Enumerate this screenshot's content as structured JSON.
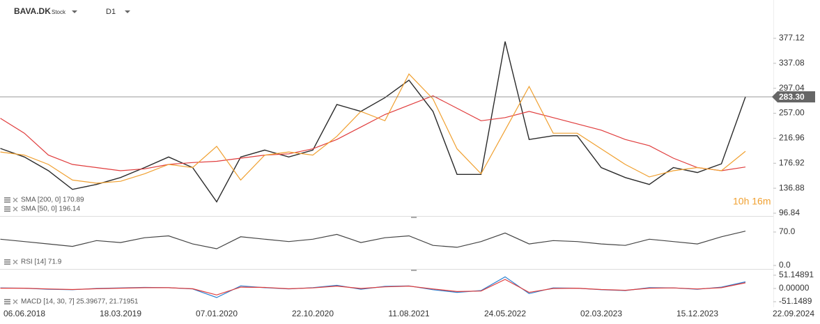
{
  "header": {
    "symbol": "BAVA.DK",
    "kind": "Stock",
    "timeframe": "D1",
    "countdown": "10h 16m"
  },
  "chart_data": [
    {
      "type": "line",
      "categories": [
        null,
        "06.06.2018",
        null,
        null,
        null,
        "18.03.2019",
        null,
        null,
        null,
        "07.01.2020",
        null,
        null,
        null,
        "22.10.2020",
        null,
        null,
        null,
        "11.08.2021",
        null,
        null,
        null,
        "24.05.2022",
        null,
        null,
        null,
        "02.03.2023",
        null,
        null,
        null,
        "15.12.2023",
        null,
        null,
        null,
        "22.09.2024"
      ],
      "ylim": [
        92.37,
        432.96
      ],
      "yticks": [
        {
          "value": 96.84,
          "label": "96.84"
        },
        136.88,
        176.92,
        216.96,
        {
          "value": 257,
          "label": "257.00"
        },
        297.04,
        337.08,
        377.12
      ],
      "last_price": {
        "value": 283.3,
        "label": "283.30"
      },
      "series": [
        {
          "color": "#2a2a2a",
          "values": [
            200.7,
            187,
            165,
            135,
            143,
            154,
            170,
            187,
            170,
            115,
            187,
            198,
            187,
            198,
            271,
            260,
            282,
            310,
            260,
            159,
            159,
            372,
            215,
            221,
            221,
            170,
            154,
            143,
            170,
            162,
            176,
            283.3,
            null,
            null
          ]
        },
        {
          "name": "SMA [200, 0] 170.89",
          "color": "#e03c3c",
          "values": [
            249,
            225,
            190,
            175,
            170,
            165,
            168,
            175,
            178,
            180,
            185,
            190,
            192,
            200,
            215,
            235,
            255,
            270,
            285,
            265,
            245,
            250,
            260,
            250,
            240,
            230,
            215,
            205,
            185,
            170,
            165,
            170.89,
            null,
            null
          ]
        },
        {
          "name": "SMA [50, 0] 196.14",
          "color": "#f0a030",
          "values": [
            195,
            190,
            175,
            150,
            145,
            148,
            160,
            175,
            170,
            204,
            150,
            190,
            195,
            190,
            220,
            260,
            245,
            320,
            280,
            200,
            160,
            230,
            300,
            225,
            225,
            200,
            175,
            155,
            165,
            170,
            165,
            196.14,
            null,
            null
          ]
        }
      ]
    },
    {
      "type": "line",
      "label": "RSI [14] 71.9",
      "ylim": [
        -7.3,
        100.6
      ],
      "yticks": [
        {
          "value": 0,
          "label": "0.0"
        },
        {
          "value": 70,
          "label": "70.0"
        }
      ],
      "series": [
        {
          "color": "#444444",
          "values": [
            55,
            50,
            45,
            40,
            52,
            48,
            58,
            62,
            45,
            35,
            60,
            55,
            50,
            55,
            65,
            48,
            58,
            62,
            42,
            38,
            50,
            68,
            45,
            52,
            50,
            45,
            42,
            55,
            50,
            45,
            60,
            71.9,
            null,
            null
          ]
        }
      ]
    },
    {
      "type": "line",
      "label": "MACD [14, 30, 7] 25.39677, 21.71951",
      "ylim": [
        -72.7,
        69.9
      ],
      "yticks": [
        {
          "value": -51.1489,
          "label": "-51.1489"
        },
        {
          "value": 0,
          "label": "0.00000"
        },
        51.14891
      ],
      "series": [
        {
          "color": "#2a7fd0",
          "values": [
            2,
            1,
            -3,
            -5,
            0,
            2,
            4,
            3,
            -2,
            -35,
            10,
            3,
            -2,
            3,
            12,
            -3,
            8,
            10,
            -5,
            -15,
            -8,
            45,
            -20,
            2,
            1,
            -5,
            -8,
            3,
            2,
            -3,
            5,
            25.39677,
            null,
            null
          ]
        },
        {
          "color": "#e03c3c",
          "values": [
            1,
            1,
            -2,
            -4,
            -1,
            1,
            3,
            3,
            -1,
            -25,
            5,
            4,
            -1,
            2,
            9,
            0,
            6,
            9,
            -2,
            -12,
            -10,
            35,
            -15,
            0,
            1,
            -4,
            -7,
            1,
            2,
            -2,
            3,
            21.71951,
            null,
            null
          ]
        }
      ]
    }
  ]
}
